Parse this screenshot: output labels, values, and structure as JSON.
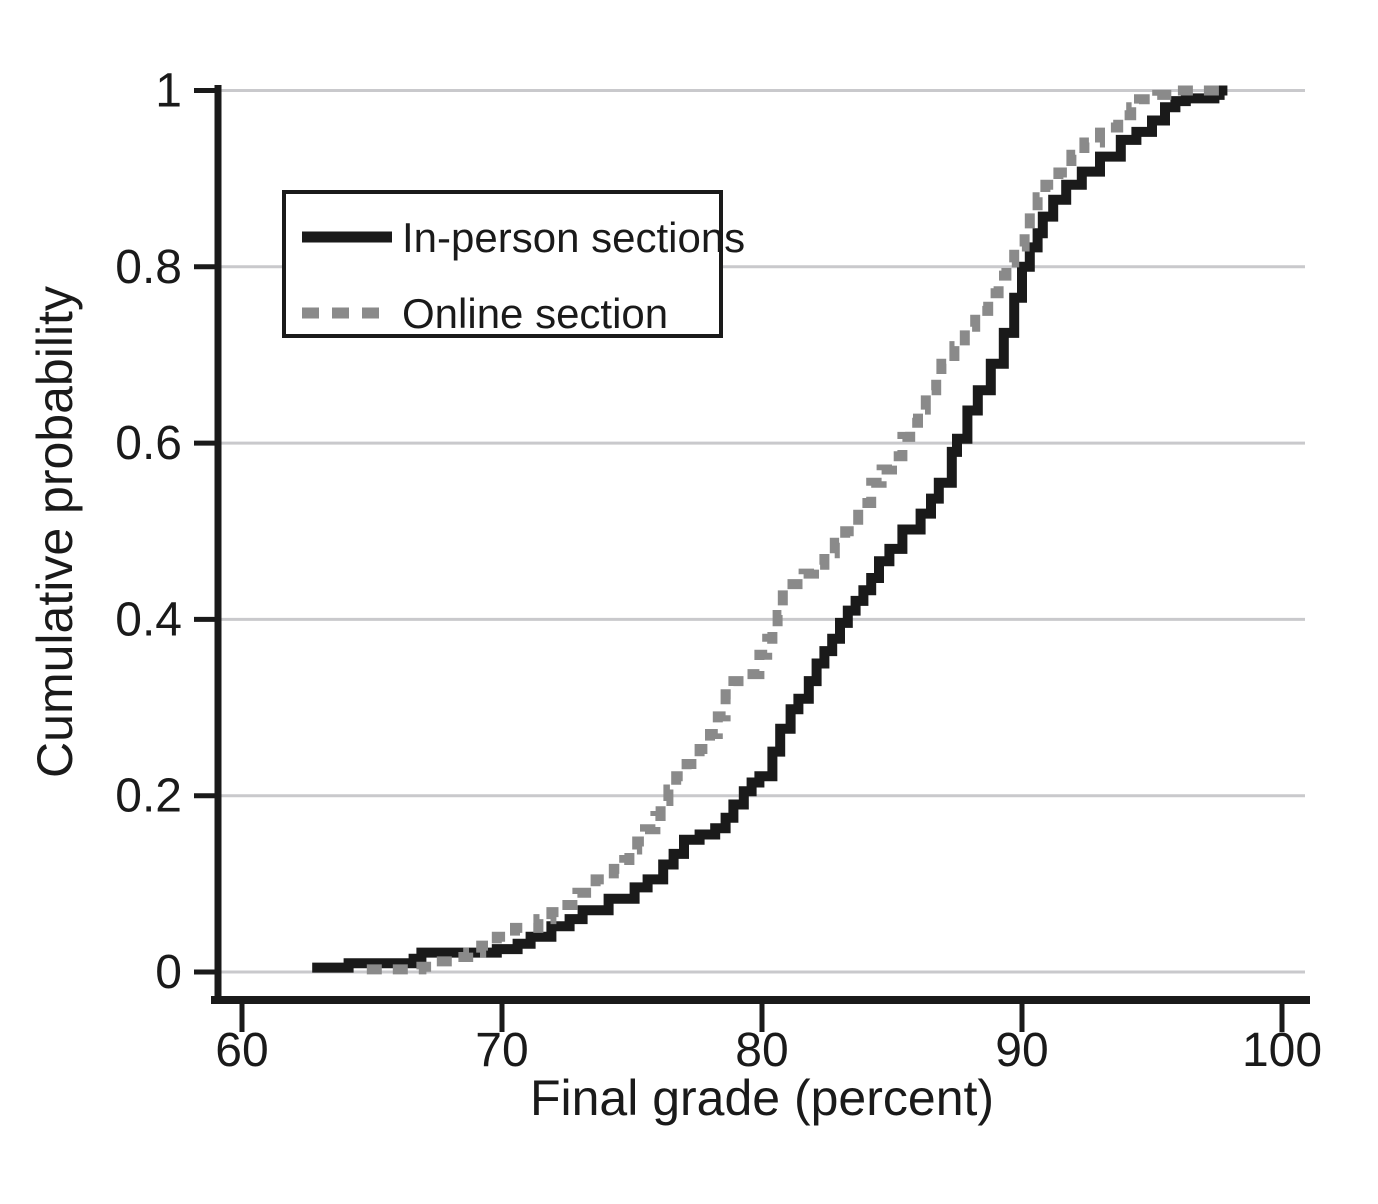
{
  "chart_data": {
    "type": "line",
    "subtype": "step-cdf",
    "title": "",
    "xlabel": "Final grade (percent)",
    "ylabel": "Cumulative probability",
    "xlim": [
      58.9,
      101.2
    ],
    "ylim": [
      0,
      1
    ],
    "x_ticks": [
      60,
      70,
      80,
      90,
      100
    ],
    "x_tick_labels": [
      "60",
      "70",
      "80",
      "90",
      "100"
    ],
    "y_ticks": [
      0,
      0.2,
      0.4,
      0.6,
      0.8,
      1
    ],
    "y_tick_labels": [
      "0",
      "0.2",
      "0.4",
      "0.6",
      "0.8",
      "1"
    ],
    "grid": "horizontal",
    "legend_position": "upper-left-inside",
    "colors": {
      "in_person": "#1a1a1a",
      "online": "#8a8a8a",
      "gridline": "#c9c9cc",
      "axis": "#1a1a1a",
      "background": "#ffffff"
    },
    "legend": [
      {
        "label": "In-person sections",
        "style": "solid"
      },
      {
        "label": "Online section",
        "style": "dashed"
      }
    ],
    "series": [
      {
        "name": "In-person sections",
        "style": "solid",
        "color": "#1a1a1a",
        "points": [
          [
            62.7,
            0.005
          ],
          [
            64.1,
            0.01
          ],
          [
            66.6,
            0.015
          ],
          [
            66.9,
            0.022
          ],
          [
            69.8,
            0.026
          ],
          [
            70.6,
            0.032
          ],
          [
            71.1,
            0.04
          ],
          [
            71.9,
            0.052
          ],
          [
            72.6,
            0.06
          ],
          [
            73.1,
            0.07
          ],
          [
            74.1,
            0.083
          ],
          [
            75.1,
            0.096
          ],
          [
            75.6,
            0.105
          ],
          [
            76.2,
            0.122
          ],
          [
            76.6,
            0.134
          ],
          [
            77.0,
            0.15
          ],
          [
            77.6,
            0.156
          ],
          [
            78.2,
            0.163
          ],
          [
            78.6,
            0.175
          ],
          [
            78.9,
            0.19
          ],
          [
            79.3,
            0.205
          ],
          [
            79.6,
            0.215
          ],
          [
            79.9,
            0.222
          ],
          [
            80.4,
            0.25
          ],
          [
            80.7,
            0.276
          ],
          [
            81.1,
            0.298
          ],
          [
            81.4,
            0.31
          ],
          [
            81.8,
            0.33
          ],
          [
            82.1,
            0.35
          ],
          [
            82.4,
            0.364
          ],
          [
            82.7,
            0.378
          ],
          [
            83.0,
            0.396
          ],
          [
            83.3,
            0.41
          ],
          [
            83.6,
            0.421
          ],
          [
            83.9,
            0.433
          ],
          [
            84.2,
            0.447
          ],
          [
            84.5,
            0.466
          ],
          [
            84.9,
            0.48
          ],
          [
            85.4,
            0.502
          ],
          [
            86.1,
            0.52
          ],
          [
            86.5,
            0.537
          ],
          [
            86.8,
            0.555
          ],
          [
            87.3,
            0.59
          ],
          [
            87.5,
            0.605
          ],
          [
            87.9,
            0.637
          ],
          [
            88.3,
            0.66
          ],
          [
            88.8,
            0.69
          ],
          [
            89.3,
            0.725
          ],
          [
            89.7,
            0.765
          ],
          [
            90.0,
            0.8
          ],
          [
            90.3,
            0.822
          ],
          [
            90.6,
            0.838
          ],
          [
            90.8,
            0.857
          ],
          [
            91.2,
            0.876
          ],
          [
            91.7,
            0.893
          ],
          [
            92.3,
            0.908
          ],
          [
            93.0,
            0.925
          ],
          [
            93.8,
            0.944
          ],
          [
            94.4,
            0.953
          ],
          [
            95.0,
            0.966
          ],
          [
            95.5,
            0.981
          ],
          [
            95.9,
            0.988
          ],
          [
            96.3,
            0.991
          ],
          [
            97.4,
            0.995
          ],
          [
            97.6,
            1.0
          ],
          [
            97.9,
            1.0
          ]
        ]
      },
      {
        "name": "Online section",
        "style": "dashed",
        "color": "#8a8a8a",
        "points": [
          [
            64.8,
            0.003
          ],
          [
            66.9,
            0.006
          ],
          [
            67.3,
            0.012
          ],
          [
            68.3,
            0.017
          ],
          [
            68.7,
            0.022
          ],
          [
            69.2,
            0.03
          ],
          [
            69.8,
            0.04
          ],
          [
            70.5,
            0.05
          ],
          [
            71.4,
            0.06
          ],
          [
            71.9,
            0.068
          ],
          [
            72.3,
            0.076
          ],
          [
            72.9,
            0.09
          ],
          [
            73.6,
            0.105
          ],
          [
            74.3,
            0.117
          ],
          [
            74.7,
            0.127
          ],
          [
            74.9,
            0.139
          ],
          [
            75.2,
            0.148
          ],
          [
            75.5,
            0.162
          ],
          [
            75.9,
            0.177
          ],
          [
            76.1,
            0.194
          ],
          [
            76.4,
            0.207
          ],
          [
            76.7,
            0.222
          ],
          [
            77.1,
            0.236
          ],
          [
            77.6,
            0.253
          ],
          [
            78.0,
            0.27
          ],
          [
            78.3,
            0.29
          ],
          [
            78.6,
            0.315
          ],
          [
            78.9,
            0.33
          ],
          [
            79.4,
            0.338
          ],
          [
            79.9,
            0.36
          ],
          [
            80.2,
            0.378
          ],
          [
            80.4,
            0.392
          ],
          [
            80.6,
            0.405
          ],
          [
            80.8,
            0.44
          ],
          [
            81.6,
            0.452
          ],
          [
            82.0,
            0.462
          ],
          [
            82.4,
            0.475
          ],
          [
            82.8,
            0.487
          ],
          [
            83.2,
            0.5
          ],
          [
            83.7,
            0.532
          ],
          [
            84.2,
            0.555
          ],
          [
            84.6,
            0.57
          ],
          [
            85.0,
            0.585
          ],
          [
            85.4,
            0.607
          ],
          [
            85.7,
            0.623
          ],
          [
            86.0,
            0.638
          ],
          [
            86.3,
            0.66
          ],
          [
            86.7,
            0.675
          ],
          [
            86.9,
            0.69
          ],
          [
            87.4,
            0.71
          ],
          [
            87.8,
            0.732
          ],
          [
            88.2,
            0.75
          ],
          [
            88.7,
            0.77
          ],
          [
            89.1,
            0.79
          ],
          [
            89.4,
            0.805
          ],
          [
            89.7,
            0.823
          ],
          [
            90.1,
            0.842
          ],
          [
            90.3,
            0.864
          ],
          [
            90.6,
            0.879
          ],
          [
            90.9,
            0.893
          ],
          [
            91.4,
            0.907
          ],
          [
            91.9,
            0.927
          ],
          [
            92.4,
            0.941
          ],
          [
            93.0,
            0.958
          ],
          [
            93.7,
            0.972
          ],
          [
            94.2,
            0.981
          ],
          [
            94.5,
            0.99
          ],
          [
            95.2,
            0.995
          ],
          [
            95.8,
            1.0
          ],
          [
            97.9,
            1.0
          ]
        ]
      }
    ]
  }
}
